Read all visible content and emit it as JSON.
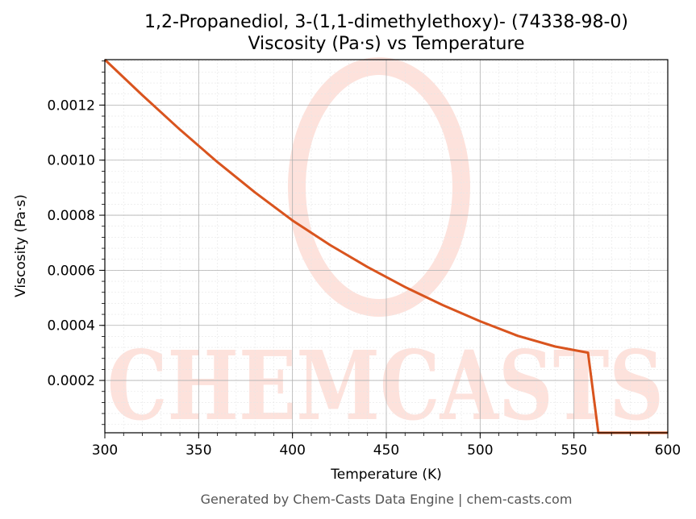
{
  "chart_data": {
    "type": "line",
    "title": "1,2-Propanediol, 3-(1,1-dimethylethoxy)- (74338-98-0)",
    "subtitle": "Viscosity (Pa·s) vs Temperature",
    "xlabel": "Temperature (K)",
    "ylabel": "Viscosity (Pa·s)",
    "xlim": [
      300,
      600
    ],
    "ylim": [
      1e-05,
      0.001365
    ],
    "xticks": [
      300,
      350,
      400,
      450,
      500,
      550,
      600
    ],
    "xtick_labels": [
      "300",
      "350",
      "400",
      "450",
      "500",
      "550",
      "600"
    ],
    "yticks": [
      0.0002,
      0.0004,
      0.0006,
      0.0008,
      0.001,
      0.0012
    ],
    "ytick_labels": [
      "0.0002",
      "0.0004",
      "0.0006",
      "0.0008",
      "0.0010",
      "0.0012"
    ],
    "grid": true,
    "series": [
      {
        "color": "#d9541e",
        "x": [
          300,
          320,
          340,
          360,
          380,
          400,
          420,
          440,
          460,
          480,
          500,
          520,
          540,
          557.5,
          563,
          600
        ],
        "y": [
          0.001365,
          0.001236,
          0.001111,
          0.000993,
          0.000883,
          0.000781,
          0.000692,
          0.000612,
          0.000539,
          0.000474,
          0.000415,
          0.000362,
          0.000323,
          0.000301,
          1e-05,
          1e-05
        ]
      }
    ]
  },
  "watermark": "CHEMCASTS",
  "footer": "Generated by Chem-Casts Data Engine | chem-casts.com"
}
